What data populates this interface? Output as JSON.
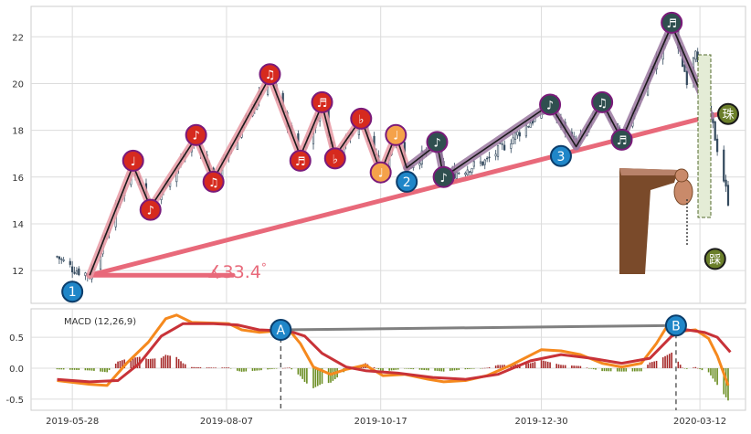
{
  "colors": {
    "background": "#eaeaf2",
    "candle": "#344a5e",
    "trend_line": "#e8697a",
    "zigzag_light": "#e89aa4",
    "zigzag_purple": "#9b79a0",
    "zigzag_dark": "#1a1a1a",
    "macd_line": "#f5891e",
    "signal_line": "#c83238",
    "hist_pos": "#a62a2a",
    "hist_neg": "#6b8e23",
    "connector": "#808080",
    "red_marker": "#d62a1e",
    "orange_marker": "#f5a24a",
    "dark_marker": "#2f4f4f",
    "blue_marker": "#1f86c8",
    "olive_marker": "#6b7f2a"
  },
  "chart_data": [
    {
      "type": "candlestick",
      "name": "price",
      "xlim": [
        "2019-05-09",
        "2020-04-02"
      ],
      "ylim": [
        10.6,
        23.3
      ],
      "yticks": [
        12,
        14,
        16,
        18,
        20,
        22
      ],
      "ytick_labels": [
        "12",
        "14",
        "16",
        "18",
        "20",
        "22"
      ],
      "grid": true,
      "approx_close_path": [
        {
          "date": "2019-05-21",
          "value": 12.6
        },
        {
          "date": "2019-05-28",
          "value": 12.1
        },
        {
          "date": "2019-06-05",
          "value": 11.8
        },
        {
          "date": "2019-06-25",
          "value": 16.5
        },
        {
          "date": "2019-07-03",
          "value": 14.7
        },
        {
          "date": "2019-07-24",
          "value": 17.7
        },
        {
          "date": "2019-08-01",
          "value": 15.9
        },
        {
          "date": "2019-08-27",
          "value": 20.3
        },
        {
          "date": "2019-09-10",
          "value": 16.9
        },
        {
          "date": "2019-09-20",
          "value": 19.1
        },
        {
          "date": "2019-09-26",
          "value": 16.9
        },
        {
          "date": "2019-10-08",
          "value": 18.5
        },
        {
          "date": "2019-10-17",
          "value": 16.2
        },
        {
          "date": "2019-10-24",
          "value": 17.8
        },
        {
          "date": "2019-10-29",
          "value": 16.4
        },
        {
          "date": "2019-11-12",
          "value": 17.4
        },
        {
          "date": "2019-11-15",
          "value": 16.0
        },
        {
          "date": "2019-12-05",
          "value": 16.7
        },
        {
          "date": "2020-01-03",
          "value": 19.1
        },
        {
          "date": "2020-01-15",
          "value": 17.3
        },
        {
          "date": "2020-01-27",
          "value": 19.2
        },
        {
          "date": "2020-02-05",
          "value": 17.6
        },
        {
          "date": "2020-02-28",
          "value": 22.5
        },
        {
          "date": "2020-03-06",
          "value": 20.2
        },
        {
          "date": "2020-03-10",
          "value": 21.6
        },
        {
          "date": "2020-03-17",
          "value": 18.6
        },
        {
          "date": "2020-03-25",
          "value": 15.0
        }
      ],
      "trend_line": {
        "from": {
          "date": "2019-06-05",
          "value": 11.8
        },
        "to": {
          "date": "2020-03-25",
          "value": 18.8
        }
      },
      "angle_label": "∡33.4$^\\circ$",
      "angle_text": "∡33.4",
      "angle_degree": "°",
      "zigzag": [
        {
          "date": "2019-06-05",
          "value": 11.8
        },
        {
          "date": "2019-06-25",
          "value": 16.5
        },
        {
          "date": "2019-07-03",
          "value": 14.7
        },
        {
          "date": "2019-07-24",
          "value": 17.7
        },
        {
          "date": "2019-08-01",
          "value": 15.9
        },
        {
          "date": "2019-08-27",
          "value": 20.3
        },
        {
          "date": "2019-09-10",
          "value": 16.9
        },
        {
          "date": "2019-09-20",
          "value": 19.1
        },
        {
          "date": "2019-09-26",
          "value": 16.9
        },
        {
          "date": "2019-10-08",
          "value": 18.5
        },
        {
          "date": "2019-10-17",
          "value": 16.2
        },
        {
          "date": "2019-10-24",
          "value": 17.8
        },
        {
          "date": "2019-10-29",
          "value": 16.4
        },
        {
          "date": "2019-11-12",
          "value": 17.4
        },
        {
          "date": "2019-11-15",
          "value": 16.0
        },
        {
          "date": "2020-01-03",
          "value": 19.1
        },
        {
          "date": "2020-01-15",
          "value": 17.3
        },
        {
          "date": "2020-01-27",
          "value": 19.2
        },
        {
          "date": "2020-02-05",
          "value": 17.6
        },
        {
          "date": "2020-02-28",
          "value": 22.5
        },
        {
          "date": "2020-03-17",
          "value": 18.6
        }
      ],
      "markers": [
        {
          "label": "1",
          "kind": "blue",
          "date": "2019-05-28",
          "value": 11.1
        },
        {
          "label": "♩",
          "kind": "red",
          "date": "2019-06-25",
          "value": 16.7
        },
        {
          "label": "♪",
          "kind": "red",
          "date": "2019-07-03",
          "value": 14.6
        },
        {
          "label": "♪",
          "kind": "red",
          "date": "2019-07-24",
          "value": 17.8
        },
        {
          "label": "♫",
          "kind": "red",
          "date": "2019-08-01",
          "value": 15.8
        },
        {
          "label": "♫",
          "kind": "red",
          "date": "2019-08-27",
          "value": 20.4
        },
        {
          "label": "♬",
          "kind": "red",
          "date": "2019-09-10",
          "value": 16.7
        },
        {
          "label": "♬",
          "kind": "red",
          "date": "2019-09-20",
          "value": 19.2
        },
        {
          "label": "♭",
          "kind": "red",
          "date": "2019-09-26",
          "value": 16.8
        },
        {
          "label": "♭",
          "kind": "red",
          "date": "2019-10-08",
          "value": 18.5
        },
        {
          "label": "♩",
          "kind": "orange",
          "date": "2019-10-17",
          "value": 16.2
        },
        {
          "label": "♩",
          "kind": "orange",
          "date": "2019-10-24",
          "value": 17.8
        },
        {
          "label": "2",
          "kind": "blue",
          "date": "2019-10-29",
          "value": 15.8
        },
        {
          "label": "♪",
          "kind": "dark",
          "date": "2019-11-12",
          "value": 17.5
        },
        {
          "label": "♪",
          "kind": "dark",
          "date": "2019-11-15",
          "value": 16.0
        },
        {
          "label": "♪",
          "kind": "dark",
          "date": "2020-01-03",
          "value": 19.1
        },
        {
          "label": "3",
          "kind": "blue",
          "date": "2020-01-08",
          "value": 16.9
        },
        {
          "label": "♫",
          "kind": "dark",
          "date": "2020-01-27",
          "value": 19.2
        },
        {
          "label": "♬",
          "kind": "dark",
          "date": "2020-02-05",
          "value": 17.6
        },
        {
          "label": "♬",
          "kind": "dark",
          "date": "2020-02-28",
          "value": 22.6
        },
        {
          "label": "珠",
          "kind": "olive",
          "date": "2020-03-25",
          "value": 18.7
        },
        {
          "label": "踩",
          "kind": "olive",
          "date": "2020-03-19",
          "value": 12.5
        }
      ]
    },
    {
      "type": "line+bar",
      "name": "macd",
      "legend": "MACD (12,26,9)",
      "xlim": [
        "2019-05-09",
        "2020-04-02"
      ],
      "ylim": [
        -0.68,
        0.96
      ],
      "yticks": [
        0.5,
        0.0,
        -0.5
      ],
      "ytick_labels": [
        "0.5",
        "0.0",
        "-0.5"
      ],
      "xtick_labels": [
        "2019-05-28",
        "2019-08-07",
        "2019-10-17",
        "2019-12-30",
        "2020-03-12"
      ],
      "xtick_dates": [
        "2019-05-28",
        "2019-08-07",
        "2019-10-17",
        "2019-12-30",
        "2020-03-12"
      ],
      "grid": true,
      "series": [
        {
          "role": "macd",
          "points": [
            {
              "date": "2019-05-21",
              "value": -0.2
            },
            {
              "date": "2019-06-05",
              "value": -0.26
            },
            {
              "date": "2019-06-13",
              "value": -0.28
            },
            {
              "date": "2019-06-22",
              "value": 0.08
            },
            {
              "date": "2019-07-02",
              "value": 0.42
            },
            {
              "date": "2019-07-10",
              "value": 0.8
            },
            {
              "date": "2019-07-15",
              "value": 0.86
            },
            {
              "date": "2019-07-22",
              "value": 0.74
            },
            {
              "date": "2019-08-01",
              "value": 0.73
            },
            {
              "date": "2019-08-08",
              "value": 0.72
            },
            {
              "date": "2019-08-14",
              "value": 0.62
            },
            {
              "date": "2019-08-22",
              "value": 0.58
            },
            {
              "date": "2019-08-29",
              "value": 0.6
            },
            {
              "date": "2019-09-05",
              "value": 0.61
            },
            {
              "date": "2019-09-10",
              "value": 0.4
            },
            {
              "date": "2019-09-16",
              "value": 0.02
            },
            {
              "date": "2019-09-24",
              "value": -0.1
            },
            {
              "date": "2019-10-01",
              "value": -0.02
            },
            {
              "date": "2019-10-10",
              "value": 0.05
            },
            {
              "date": "2019-10-18",
              "value": -0.12
            },
            {
              "date": "2019-10-28",
              "value": -0.1
            },
            {
              "date": "2019-11-08",
              "value": -0.18
            },
            {
              "date": "2019-11-15",
              "value": -0.22
            },
            {
              "date": "2019-11-25",
              "value": -0.2
            },
            {
              "date": "2019-12-05",
              "value": -0.12
            },
            {
              "date": "2019-12-16",
              "value": 0.05
            },
            {
              "date": "2019-12-30",
              "value": 0.3
            },
            {
              "date": "2020-01-08",
              "value": 0.28
            },
            {
              "date": "2020-01-17",
              "value": 0.22
            },
            {
              "date": "2020-01-27",
              "value": 0.08
            },
            {
              "date": "2020-02-05",
              "value": 0.02
            },
            {
              "date": "2020-02-14",
              "value": 0.08
            },
            {
              "date": "2020-02-21",
              "value": 0.4
            },
            {
              "date": "2020-02-28",
              "value": 0.8
            },
            {
              "date": "2020-03-04",
              "value": 0.6
            },
            {
              "date": "2020-03-10",
              "value": 0.62
            },
            {
              "date": "2020-03-16",
              "value": 0.48
            },
            {
              "date": "2020-03-20",
              "value": 0.2
            },
            {
              "date": "2020-03-25",
              "value": -0.28
            }
          ]
        },
        {
          "role": "signal",
          "points": [
            {
              "date": "2019-05-21",
              "value": -0.18
            },
            {
              "date": "2019-06-05",
              "value": -0.22
            },
            {
              "date": "2019-06-18",
              "value": -0.2
            },
            {
              "date": "2019-06-28",
              "value": 0.08
            },
            {
              "date": "2019-07-08",
              "value": 0.52
            },
            {
              "date": "2019-07-18",
              "value": 0.72
            },
            {
              "date": "2019-08-01",
              "value": 0.72
            },
            {
              "date": "2019-08-12",
              "value": 0.7
            },
            {
              "date": "2019-08-22",
              "value": 0.62
            },
            {
              "date": "2019-09-05",
              "value": 0.6
            },
            {
              "date": "2019-09-12",
              "value": 0.52
            },
            {
              "date": "2019-09-20",
              "value": 0.24
            },
            {
              "date": "2019-10-01",
              "value": 0.02
            },
            {
              "date": "2019-10-10",
              "value": -0.04
            },
            {
              "date": "2019-10-25",
              "value": -0.08
            },
            {
              "date": "2019-11-10",
              "value": -0.15
            },
            {
              "date": "2019-11-25",
              "value": -0.18
            },
            {
              "date": "2019-12-10",
              "value": -0.1
            },
            {
              "date": "2019-12-25",
              "value": 0.12
            },
            {
              "date": "2020-01-08",
              "value": 0.22
            },
            {
              "date": "2020-01-22",
              "value": 0.16
            },
            {
              "date": "2020-02-05",
              "value": 0.08
            },
            {
              "date": "2020-02-18",
              "value": 0.16
            },
            {
              "date": "2020-02-28",
              "value": 0.52
            },
            {
              "date": "2020-03-06",
              "value": 0.62
            },
            {
              "date": "2020-03-14",
              "value": 0.58
            },
            {
              "date": "2020-03-20",
              "value": 0.5
            },
            {
              "date": "2020-03-26",
              "value": 0.26
            }
          ]
        }
      ],
      "annotations": [
        {
          "label": "A",
          "date": "2019-09-01",
          "value": 0.62
        },
        {
          "label": "B",
          "date": "2020-03-01",
          "value": 0.69
        }
      ]
    }
  ]
}
